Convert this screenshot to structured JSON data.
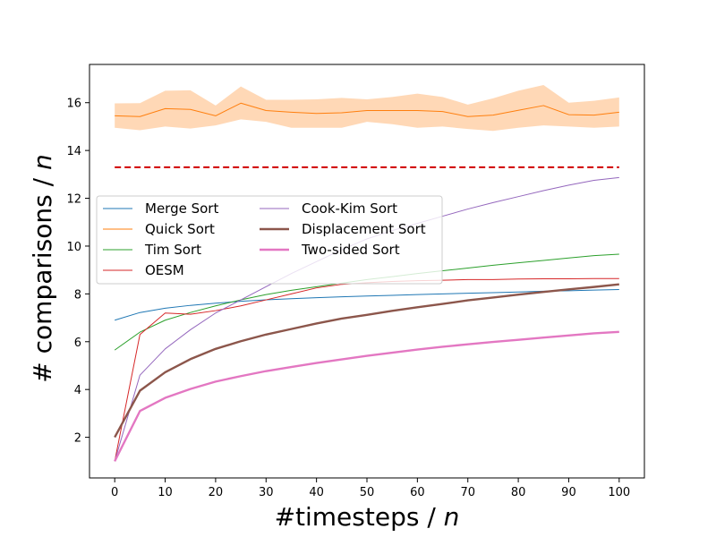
{
  "chart_data": {
    "type": "line",
    "xlabel": "#timesteps / n",
    "ylabel": "# comparisons / n",
    "xlim": [
      -5,
      105
    ],
    "ylim": [
      0.3,
      17.6
    ],
    "xticks": [
      0,
      10,
      20,
      30,
      40,
      50,
      60,
      70,
      80,
      90,
      100
    ],
    "yticks": [
      2,
      4,
      6,
      8,
      10,
      12,
      14,
      16
    ],
    "grid": false,
    "legend_position": "center-left",
    "legend_columns": 2,
    "x": [
      0,
      5,
      10,
      15,
      20,
      25,
      30,
      35,
      40,
      45,
      50,
      55,
      60,
      65,
      70,
      75,
      80,
      85,
      90,
      95,
      100
    ],
    "series": [
      {
        "name": "Merge Sort",
        "color": "#1f77b4",
        "width": 1,
        "values": [
          6.9,
          7.22,
          7.4,
          7.52,
          7.61,
          7.69,
          7.75,
          7.8,
          7.84,
          7.88,
          7.91,
          7.94,
          7.97,
          8.0,
          8.03,
          8.05,
          8.08,
          8.11,
          8.13,
          8.16,
          8.18
        ]
      },
      {
        "name": "Quick Sort",
        "color": "#ff7f0e",
        "width": 1,
        "values": [
          15.45,
          15.42,
          15.75,
          15.72,
          15.45,
          15.98,
          15.67,
          15.6,
          15.55,
          15.58,
          15.67,
          15.67,
          15.67,
          15.63,
          15.42,
          15.48,
          15.68,
          15.88,
          15.5,
          15.48,
          15.6
        ],
        "band_upper": [
          15.97,
          15.98,
          16.5,
          16.52,
          15.88,
          16.68,
          16.12,
          16.12,
          16.14,
          16.2,
          16.14,
          16.24,
          16.38,
          16.24,
          15.92,
          16.18,
          16.5,
          16.74,
          16.0,
          16.08,
          16.22
        ],
        "band_lower": [
          14.95,
          14.85,
          15.0,
          14.92,
          15.05,
          15.3,
          15.2,
          14.95,
          14.95,
          14.95,
          15.2,
          15.1,
          14.95,
          15.0,
          14.9,
          14.82,
          14.95,
          15.05,
          15.0,
          14.95,
          15.0
        ]
      },
      {
        "name": "Tim Sort",
        "color": "#2ca02c",
        "width": 1,
        "values": [
          5.65,
          6.4,
          6.9,
          7.22,
          7.5,
          7.75,
          7.97,
          8.15,
          8.3,
          8.45,
          8.6,
          8.72,
          8.85,
          8.97,
          9.08,
          9.2,
          9.3,
          9.4,
          9.5,
          9.6,
          9.66
        ]
      },
      {
        "name": "OESM",
        "color": "#d62728",
        "width": 1,
        "values": [
          1.0,
          6.3,
          7.2,
          7.15,
          7.3,
          7.5,
          7.75,
          8.0,
          8.25,
          8.4,
          8.47,
          8.52,
          8.55,
          8.57,
          8.6,
          8.6,
          8.62,
          8.63,
          8.63,
          8.64,
          8.64
        ]
      },
      {
        "name": "Cook-Kim Sort",
        "color": "#9467bd",
        "width": 1,
        "values": [
          1.0,
          4.6,
          5.7,
          6.5,
          7.2,
          7.75,
          8.3,
          8.85,
          9.35,
          9.85,
          10.3,
          10.65,
          10.95,
          11.25,
          11.55,
          11.82,
          12.07,
          12.32,
          12.55,
          12.75,
          12.87
        ]
      },
      {
        "name": "Displacement Sort",
        "color": "#8c564b",
        "width": 2.4,
        "values": [
          2.0,
          3.95,
          4.72,
          5.27,
          5.7,
          6.02,
          6.3,
          6.53,
          6.76,
          6.97,
          7.12,
          7.29,
          7.44,
          7.58,
          7.73,
          7.85,
          7.97,
          8.08,
          8.19,
          8.29,
          8.4
        ]
      },
      {
        "name": "Two-sided Sort",
        "color": "#e377c2",
        "width": 2.4,
        "values": [
          1.0,
          3.1,
          3.65,
          4.02,
          4.33,
          4.56,
          4.77,
          4.94,
          5.11,
          5.26,
          5.41,
          5.54,
          5.67,
          5.79,
          5.89,
          5.99,
          6.08,
          6.17,
          6.26,
          6.35,
          6.41
        ]
      }
    ],
    "reference_line": {
      "y": 13.3,
      "color": "#d00000",
      "style": "dashed"
    }
  }
}
